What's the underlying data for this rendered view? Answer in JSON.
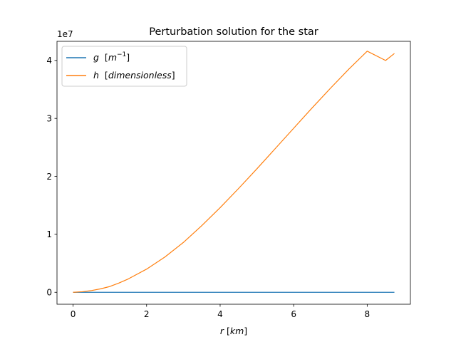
{
  "chart_data": {
    "type": "line",
    "title": "Perturbation solution for the star",
    "xlabel": {
      "symbol": "r",
      "unit": "km"
    },
    "ylabel": "",
    "y_offset_text": "1e7",
    "xlim": [
      -0.437,
      9.175
    ],
    "ylim": [
      -2060000.0,
      43300000.0
    ],
    "xticks": [
      0,
      2,
      4,
      6,
      8
    ],
    "yticks": [
      0,
      10000000.0,
      20000000.0,
      30000000.0,
      40000000.0
    ],
    "xtick_labels": [
      "0",
      "2",
      "4",
      "6",
      "8"
    ],
    "ytick_labels": [
      "0",
      "1",
      "2",
      "3",
      "4"
    ],
    "grid": false,
    "legend_position": "upper-left",
    "series": [
      {
        "name": "g [m^-1]",
        "legend": {
          "symbol": "g",
          "open": "[",
          "unit": "m",
          "exp": "−1",
          "close": "]"
        },
        "color": "#1f77b4",
        "x": [
          0,
          0.5,
          1,
          1.5,
          2,
          2.5,
          3,
          3.5,
          4,
          4.5,
          5,
          5.5,
          6,
          6.5,
          7,
          7.5,
          8,
          8.5,
          8.74
        ],
        "y": [
          0,
          0,
          0,
          0,
          0,
          0,
          0,
          0,
          0,
          0,
          0,
          0,
          0,
          0,
          0,
          0,
          0,
          0,
          0
        ]
      },
      {
        "name": "h [dimensionless]",
        "legend": {
          "symbol": "h",
          "open": "[",
          "unit": "dimensionless",
          "close": "]"
        },
        "color": "#ff7f0e",
        "x": [
          0,
          0.25,
          0.5,
          0.75,
          1,
          1.25,
          1.5,
          2,
          2.5,
          3,
          3.5,
          4,
          4.5,
          5,
          5.5,
          6,
          6.5,
          7,
          7.5,
          8,
          8.5,
          8.74
        ],
        "y": [
          0,
          100000.0,
          300000.0,
          600000.0,
          1000000.0,
          1600000.0,
          2300000.0,
          4000000.0,
          6100000.0,
          8600000.0,
          11500000.0,
          14600000.0,
          17900000.0,
          21300000.0,
          24800000.0,
          28300000.0,
          31800000.0,
          35200000.0,
          38500000.0,
          41600000.0,
          40000000.0,
          41200000.0
        ]
      }
    ]
  }
}
